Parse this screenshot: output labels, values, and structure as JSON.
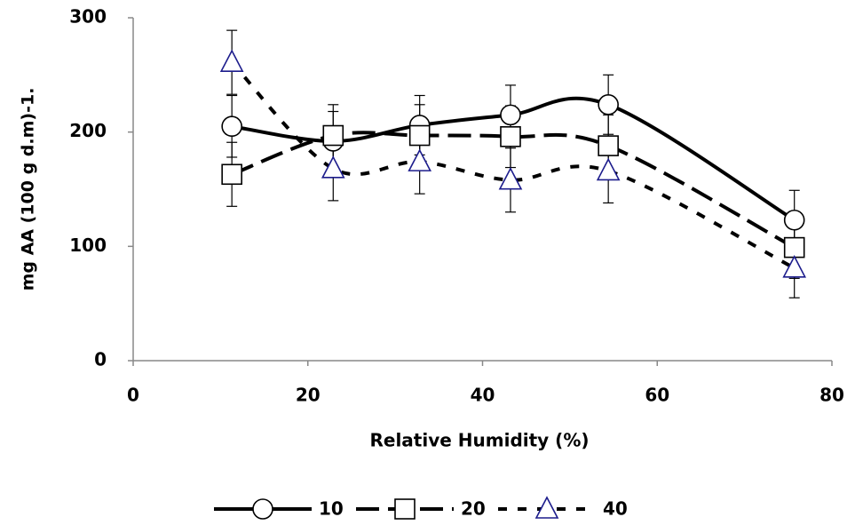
{
  "chart_data": {
    "type": "line",
    "xlabel": "Relative Humidity (%)",
    "ylabel": "mg AA (100 g d.m)-1.",
    "xlim": [
      0,
      80
    ],
    "xticks": [
      0,
      20,
      40,
      60,
      80
    ],
    "ylim": [
      0,
      300
    ],
    "yticks": [
      0,
      100,
      200,
      300
    ],
    "x": [
      11.3,
      22.9,
      32.8,
      43.2,
      54.4,
      75.7
    ],
    "legend": "bottom",
    "series": [
      {
        "name": "10",
        "color": "#000000",
        "marker": "circle",
        "marker_color": "#000000",
        "dash": "solid",
        "values": [
          205,
          192,
          206,
          215,
          224,
          123
        ],
        "errors": [
          27,
          26,
          26,
          26,
          26,
          26
        ]
      },
      {
        "name": "20",
        "color": "#000000",
        "marker": "square",
        "marker_color": "#000000",
        "dash": "long",
        "values": [
          163,
          197,
          197,
          196,
          188,
          99
        ],
        "errors": [
          28,
          27,
          27,
          27,
          27,
          27
        ]
      },
      {
        "name": "40",
        "color": "#000000",
        "marker": "triangle",
        "marker_color": "#1c1c8c",
        "dash": "short",
        "values": [
          261,
          168,
          174,
          158,
          166,
          81
        ],
        "errors": [
          28,
          28,
          28,
          28,
          28,
          26
        ]
      }
    ]
  }
}
